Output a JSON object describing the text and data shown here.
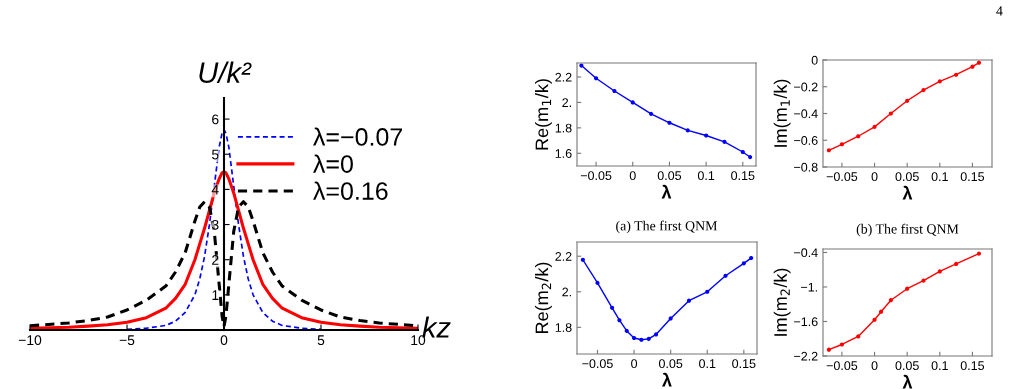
{
  "chart_data": [
    {
      "type": "line",
      "xlabel": "kz",
      "ylabel": "U/k²",
      "x": [
        -10,
        -8,
        -7,
        -6,
        -5,
        -4,
        -3,
        -2.5,
        -2,
        -1.5,
        -1.25,
        -1,
        -0.75,
        -0.5,
        -0.25,
        -0.1,
        0,
        0.1,
        0.25,
        0.5,
        0.75,
        1,
        1.25,
        1.5,
        2,
        2.5,
        3,
        4,
        5,
        6,
        7,
        8,
        10
      ],
      "series": [
        {
          "name": "λ=−0.07",
          "color": "#0000ff",
          "line_style": "dashed",
          "values": [
            null,
            null,
            null,
            null,
            0.02,
            0.05,
            0.13,
            0.25,
            0.5,
            1.0,
            1.45,
            2.1,
            3.0,
            4.1,
            5.2,
            5.6,
            5.7,
            5.6,
            5.2,
            4.1,
            3.0,
            2.1,
            1.45,
            1.0,
            0.5,
            0.25,
            0.13,
            0.05,
            0.02,
            null,
            null,
            null,
            null
          ]
        },
        {
          "name": "λ=0",
          "color": "#ff0000",
          "line_style": "solid",
          "values": [
            0.05,
            0.08,
            0.11,
            0.15,
            0.22,
            0.35,
            0.62,
            0.9,
            1.3,
            2.0,
            2.45,
            2.9,
            3.4,
            3.9,
            4.3,
            4.47,
            4.5,
            4.47,
            4.3,
            3.9,
            3.4,
            2.9,
            2.45,
            2.0,
            1.3,
            0.9,
            0.62,
            0.35,
            0.22,
            0.15,
            0.11,
            0.08,
            0.05
          ]
        },
        {
          "name": "λ=0.16",
          "color": "#000000",
          "line_style": "dashed",
          "values": [
            0.12,
            0.2,
            0.27,
            0.37,
            0.57,
            0.85,
            1.25,
            1.65,
            2.2,
            3.1,
            3.5,
            3.65,
            3.5,
            2.8,
            1.3,
            0.4,
            0.1,
            0.4,
            1.3,
            2.8,
            3.5,
            3.65,
            3.5,
            3.1,
            2.2,
            1.65,
            1.25,
            0.85,
            0.57,
            0.37,
            0.27,
            0.2,
            0.12
          ]
        }
      ],
      "xlim": [
        -10,
        10
      ],
      "ylim": [
        0,
        6.6
      ],
      "xticks": [
        {
          "value": -10,
          "label": "−10"
        },
        {
          "value": -5,
          "label": "−5"
        },
        0,
        5,
        10
      ],
      "yticks": [
        1,
        2,
        3,
        4,
        5,
        6
      ],
      "legend": "top right",
      "annotations": [
        "4"
      ]
    },
    {
      "type": "line",
      "xlabel": "λ",
      "ylabel": "Re(m$_{1}$/k)",
      "marker": "circle",
      "x": [
        -0.07,
        -0.05,
        -0.025,
        0,
        0.025,
        0.05,
        0.075,
        0.1,
        0.125,
        0.15,
        0.16
      ],
      "series": [
        {
          "color": "#0000ff",
          "values": [
            2.29,
            2.19,
            2.09,
            2.0,
            1.91,
            1.84,
            1.78,
            1.74,
            1.69,
            1.61,
            1.57
          ]
        }
      ],
      "xlim": [
        -0.076,
        0.168
      ],
      "ylim": [
        1.5,
        2.31
      ],
      "xticks": [
        {
          "value": -0.05,
          "label": "−0.05"
        },
        0,
        0.05,
        0.1,
        0.15
      ],
      "yticks": [
        1.6,
        1.8,
        {
          "value": 2,
          "label": "2."
        },
        2.2
      ],
      "annotations": [
        "(a) The first QNM"
      ]
    },
    {
      "type": "line",
      "xlabel": "λ",
      "ylabel": "Im(m$_{1}$/k)",
      "marker": "circle",
      "x": [
        -0.07,
        -0.05,
        -0.025,
        0,
        0.025,
        0.05,
        0.075,
        0.1,
        0.125,
        0.15,
        0.16
      ],
      "series": [
        {
          "color": "#ff0000",
          "values": [
            -0.675,
            -0.63,
            -0.57,
            -0.5,
            -0.4,
            -0.305,
            -0.225,
            -0.16,
            -0.11,
            -0.05,
            -0.02
          ]
        }
      ],
      "xlim": [
        -0.079,
        0.18
      ],
      "ylim": [
        -0.8,
        0
      ],
      "xticks": [
        {
          "value": -0.05,
          "label": "−0.05"
        },
        0,
        0.05,
        0.1,
        0.15
      ],
      "yticks": [
        {
          "value": -0.8,
          "label": "−0.8"
        },
        {
          "value": -0.6,
          "label": "−0.6"
        },
        {
          "value": -0.4,
          "label": "−0.4"
        },
        {
          "value": -0.2,
          "label": "−0.2"
        },
        0
      ],
      "annotations": [
        "(b) The first QNM"
      ]
    },
    {
      "type": "line",
      "xlabel": "λ",
      "ylabel": "Re(m$_{2}$/k)",
      "marker": "circle",
      "x": [
        -0.07,
        -0.05,
        -0.03,
        -0.02,
        -0.01,
        0,
        0.01,
        0.02,
        0.03,
        0.05,
        0.075,
        0.1,
        0.125,
        0.15,
        0.16
      ],
      "series": [
        {
          "color": "#0000ff",
          "values": [
            2.18,
            2.05,
            1.91,
            1.84,
            1.78,
            1.74,
            1.73,
            1.735,
            1.76,
            1.85,
            1.95,
            2.0,
            2.09,
            2.16,
            2.19
          ]
        }
      ],
      "xlim": [
        -0.078,
        0.168
      ],
      "ylim": [
        1.65,
        2.28
      ],
      "xticks": [
        {
          "value": -0.05,
          "label": "−0.05"
        },
        0,
        0.05,
        0.1,
        0.15
      ],
      "yticks": [
        1.8,
        {
          "value": 2,
          "label": "2."
        },
        2.2
      ]
    },
    {
      "type": "line",
      "xlabel": "λ",
      "ylabel": "Im(m$_{2}$/k)",
      "marker": "circle",
      "x": [
        -0.07,
        -0.05,
        -0.025,
        0,
        0.01,
        0.025,
        0.05,
        0.075,
        0.1,
        0.125,
        0.16
      ],
      "series": [
        {
          "color": "#ff0000",
          "values": [
            -2.09,
            -2.0,
            -1.86,
            -1.57,
            -1.43,
            -1.23,
            -1.03,
            -0.89,
            -0.73,
            -0.6,
            -0.42
          ]
        }
      ],
      "xlim": [
        -0.079,
        0.18
      ],
      "ylim": [
        -2.2,
        -0.34
      ],
      "xticks": [
        {
          "value": -0.05,
          "label": "−0.05"
        },
        0,
        0.05,
        0.1,
        0.15
      ],
      "yticks": [
        {
          "value": -2.2,
          "label": "−2.2"
        },
        {
          "value": -1.6,
          "label": "−1.6"
        },
        {
          "value": -1,
          "label": "−1."
        },
        {
          "value": -0.4,
          "label": "−0.4"
        }
      ]
    }
  ]
}
